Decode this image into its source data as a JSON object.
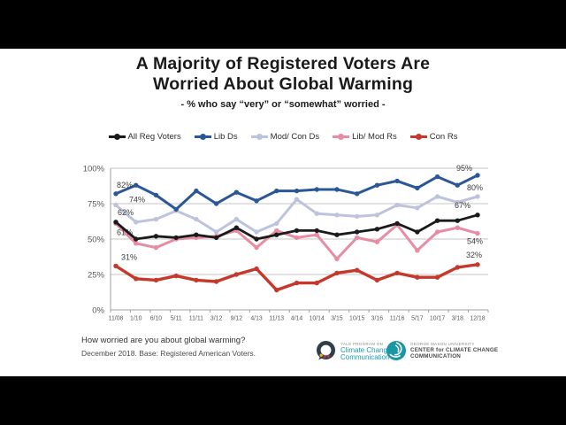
{
  "slide": {
    "title_line1": "A Majority of Registered Voters Are",
    "title_line2": "Worried About Global Warming",
    "subtitle": "- % who say “very” or “somewhat” worried -"
  },
  "legend": [
    {
      "label": "All Reg Voters",
      "color": "#1a1a1a"
    },
    {
      "label": "Lib Ds",
      "color": "#2b5797"
    },
    {
      "label": "Mod/ Con Ds",
      "color": "#bdc3dd"
    },
    {
      "label": "Lib/ Mod Rs",
      "color": "#e78ca2"
    },
    {
      "label": "Con Rs",
      "color": "#c5392c"
    }
  ],
  "chart_data": {
    "type": "line",
    "title": "A Majority of Registered Voters Are Worried About Global Warming",
    "subtitle": "% who say “very” or “somewhat” worried",
    "x": [
      "11/08",
      "1/10",
      "6/10",
      "5/11",
      "11/11",
      "3/12",
      "9/12",
      "4/13",
      "11/13",
      "4/14",
      "10/14",
      "3/15",
      "10/15",
      "3/16",
      "11/16",
      "5/17",
      "10/17",
      "3/18",
      "12/18"
    ],
    "ylim": [
      0,
      100
    ],
    "yticks": [
      100,
      75,
      50,
      25,
      0
    ],
    "ytick_labels": [
      "100%",
      "75%",
      "50%",
      "25%",
      "0%"
    ],
    "grid": true,
    "legend_position": "top",
    "series": [
      {
        "name": "All Reg Voters",
        "color": "#1a1a1a",
        "values": [
          62,
          50,
          52,
          51,
          53,
          51,
          58,
          50,
          53,
          56,
          56,
          53,
          55,
          57,
          61,
          55,
          63,
          63,
          67
        ],
        "first_label": "62%",
        "last_label": "67%"
      },
      {
        "name": "Lib Ds",
        "color": "#2b5797",
        "values": [
          82,
          88,
          81,
          71,
          84,
          75,
          83,
          77,
          84,
          84,
          85,
          85,
          82,
          88,
          91,
          86,
          94,
          88,
          95
        ],
        "first_label": "82%",
        "last_label": "95%"
      },
      {
        "name": "Mod/ Con Ds",
        "color": "#bdc3dd",
        "values": [
          74,
          62,
          64,
          70,
          64,
          55,
          64,
          55,
          61,
          78,
          68,
          67,
          66,
          67,
          74,
          72,
          80,
          76,
          80
        ],
        "first_label": "74%",
        "last_label": "80%"
      },
      {
        "name": "Lib/ Mod Rs",
        "color": "#e78ca2",
        "values": [
          61,
          47,
          44,
          50,
          51,
          52,
          56,
          44,
          56,
          51,
          53,
          36,
          51,
          48,
          60,
          42,
          55,
          58,
          54
        ],
        "first_label": "61%",
        "last_label": "54%"
      },
      {
        "name": "Con Rs",
        "color": "#c5392c",
        "values": [
          31,
          22,
          21,
          24,
          21,
          20,
          25,
          29,
          14,
          19,
          19,
          26,
          28,
          21,
          26,
          23,
          23,
          30,
          32
        ],
        "first_label": "31%",
        "last_label": "32%"
      }
    ]
  },
  "footer": {
    "question": "How worried are you about global warming?",
    "base": "December 2018. Base: Registered American Voters.",
    "yale": {
      "line1": "YALE PROGRAM ON",
      "line2": "Climate Change",
      "line3": "Communication"
    },
    "gmu": {
      "line1": "GEORGE MASON UNIVERSITY",
      "line2": "CENTER for CLIMATE CHANGE",
      "line3": "COMMUNICATION"
    }
  }
}
